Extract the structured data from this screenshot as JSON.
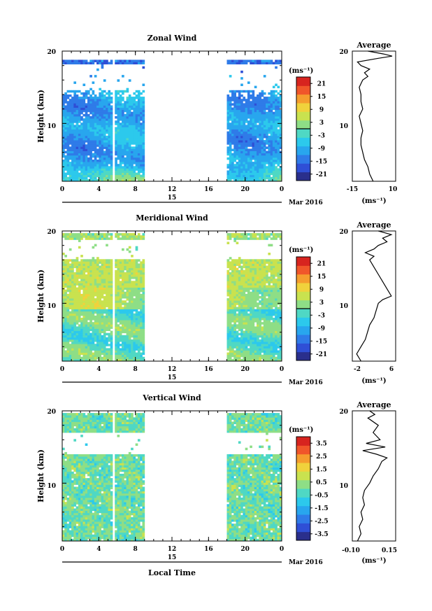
{
  "colors": {
    "scale": [
      "#2a2f8c",
      "#2f4fd6",
      "#2f7be8",
      "#28a6ee",
      "#2cc9ec",
      "#4fd8c4",
      "#8ede86",
      "#c9e24f",
      "#f0d23c",
      "#f59d2e",
      "#f0562a",
      "#d7241f"
    ],
    "contour": "#000000",
    "profile": "#000000"
  },
  "shared": {
    "height_label": "Height (km)",
    "y_ticks": [
      "20",
      "10"
    ],
    "x_ticks": [
      "0",
      "4",
      "8",
      "12",
      "16",
      "20",
      "0"
    ],
    "date_tick": "15",
    "date_label": "Mar 2016",
    "local_time_label": "Local Time",
    "avg_unit": "(ms⁻¹)",
    "cb_unit": "(ms⁻¹)"
  },
  "chart_data": [
    {
      "type": "heatmap",
      "title": "Zonal Wind",
      "xlim": [
        0,
        24
      ],
      "ylim": [
        2,
        20
      ],
      "colorbar": {
        "ticks": [
          "21",
          "15",
          "9",
          "3",
          "-3",
          "-9",
          "-15",
          "-21"
        ],
        "range": [
          -24,
          24
        ],
        "zero_line": 0
      },
      "data_windows_hours": [
        [
          0,
          9
        ],
        [
          18,
          24
        ]
      ],
      "average": {
        "title": "Average",
        "xticks": [
          "-15",
          "10"
        ],
        "xlim": [
          -15,
          10
        ],
        "yticks": [
          "20",
          "10"
        ],
        "profile": [
          [
            2,
            -3
          ],
          [
            3,
            -5
          ],
          [
            4,
            -6
          ],
          [
            5,
            -8
          ],
          [
            6,
            -9
          ],
          [
            7,
            -10
          ],
          [
            8,
            -10
          ],
          [
            9,
            -9
          ],
          [
            10,
            -10
          ],
          [
            11,
            -11
          ],
          [
            12,
            -9
          ],
          [
            13,
            -10
          ],
          [
            14,
            -10
          ],
          [
            15,
            -11
          ],
          [
            16,
            -9
          ],
          [
            16.5,
            -6
          ],
          [
            17,
            -8
          ],
          [
            17.5,
            -5
          ],
          [
            18,
            -10
          ],
          [
            18.5,
            -12
          ],
          [
            19,
            0
          ],
          [
            19.3,
            8
          ],
          [
            19.6,
            3
          ],
          [
            20,
            -6
          ]
        ]
      }
    },
    {
      "type": "heatmap",
      "title": "Meridional Wind",
      "xlim": [
        0,
        24
      ],
      "ylim": [
        2,
        20
      ],
      "colorbar": {
        "ticks": [
          "21",
          "15",
          "9",
          "3",
          "-3",
          "-9",
          "-15",
          "-21"
        ],
        "range": [
          -24,
          24
        ],
        "zero_line": 0
      },
      "data_windows_hours": [
        [
          0,
          9
        ],
        [
          18,
          24
        ]
      ],
      "average": {
        "title": "Average",
        "xticks": [
          "-2",
          "6"
        ],
        "xlim": [
          -3,
          7
        ],
        "yticks": [
          "20",
          "10"
        ],
        "profile": [
          [
            2,
            -1
          ],
          [
            3,
            -2
          ],
          [
            4,
            -1
          ],
          [
            5,
            0
          ],
          [
            6,
            0.5
          ],
          [
            7,
            1
          ],
          [
            8,
            2
          ],
          [
            9,
            2.5
          ],
          [
            10,
            3
          ],
          [
            10.5,
            4
          ],
          [
            11,
            6
          ],
          [
            12,
            5
          ],
          [
            13,
            4
          ],
          [
            14,
            3
          ],
          [
            15,
            2
          ],
          [
            16,
            1
          ],
          [
            16.5,
            2
          ],
          [
            17,
            0
          ],
          [
            17.5,
            2
          ],
          [
            18,
            3
          ],
          [
            18.5,
            5
          ],
          [
            19,
            4
          ],
          [
            19.5,
            6
          ],
          [
            20,
            3
          ]
        ]
      }
    },
    {
      "type": "heatmap",
      "title": "Vertical Wind",
      "xlim": [
        0,
        24
      ],
      "ylim": [
        2,
        20
      ],
      "colorbar": {
        "ticks": [
          "3.5",
          "2.5",
          "1.5",
          "0.5",
          "-0.5",
          "-1.5",
          "-2.5",
          "-3.5"
        ],
        "range": [
          -4,
          4
        ]
      },
      "data_windows_hours": [
        [
          0,
          9
        ],
        [
          18,
          24
        ]
      ],
      "average": {
        "title": "Average",
        "xticks": [
          "-0.10",
          "0.15"
        ],
        "xlim": [
          -0.1,
          0.15
        ],
        "yticks": [
          "20",
          "10"
        ],
        "profile": [
          [
            2,
            -0.07
          ],
          [
            3,
            -0.05
          ],
          [
            4,
            -0.06
          ],
          [
            5,
            -0.04
          ],
          [
            6,
            -0.05
          ],
          [
            7,
            -0.03
          ],
          [
            8,
            -0.04
          ],
          [
            9,
            -0.03
          ],
          [
            10,
            0.0
          ],
          [
            11,
            0.02
          ],
          [
            12,
            0.05
          ],
          [
            13,
            0.07
          ],
          [
            13.5,
            0.1
          ],
          [
            14,
            0.04
          ],
          [
            14.5,
            -0.04
          ],
          [
            15,
            0.09
          ],
          [
            15.5,
            -0.02
          ],
          [
            16,
            0.06
          ],
          [
            17,
            0.02
          ],
          [
            18,
            0.05
          ],
          [
            19,
            -0.01
          ],
          [
            19.5,
            0.03
          ],
          [
            20,
            0.0
          ]
        ]
      }
    }
  ]
}
